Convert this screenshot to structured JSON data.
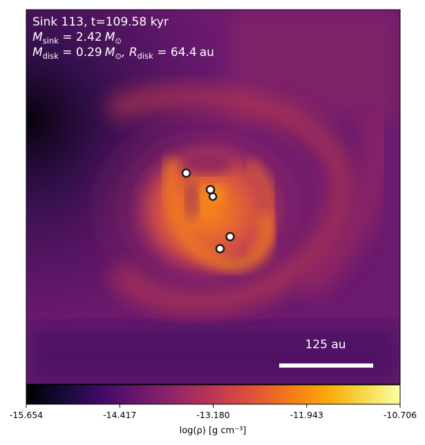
{
  "chart_data": {
    "type": "heatmap",
    "annotation": {
      "line1": "Sink 113, t=109.58 kyr",
      "line2_symbol": "M",
      "line2_sub": "sink",
      "line2_value": " = 2.42",
      "line2_unit": "M",
      "line2_unit_sub": "⊙",
      "line3_sym1": "M",
      "line3_sub1": "disk",
      "line3_val1": " = 0.29",
      "line3_unit1": "M",
      "line3_unit1_sub": "⊙",
      "line3_sym2": ", R",
      "line3_sub2": "disk",
      "line3_val2": " = 64.4",
      "line3_unit2": "au"
    },
    "scale_bar": {
      "label": "125 au",
      "length_au": 125
    },
    "colorbar": {
      "label": "log(ρ) [g cm⁻³]",
      "ticks": [
        "-15.654",
        "-14.417",
        "-13.180",
        "-11.943",
        "-10.706"
      ],
      "range": [
        -15.654,
        -10.706
      ],
      "colormap": "inferno"
    },
    "sinks": [
      {
        "name": "sink-1"
      },
      {
        "name": "sink-2"
      },
      {
        "name": "sink-3"
      },
      {
        "name": "sink-4"
      },
      {
        "name": "sink-5"
      }
    ]
  }
}
